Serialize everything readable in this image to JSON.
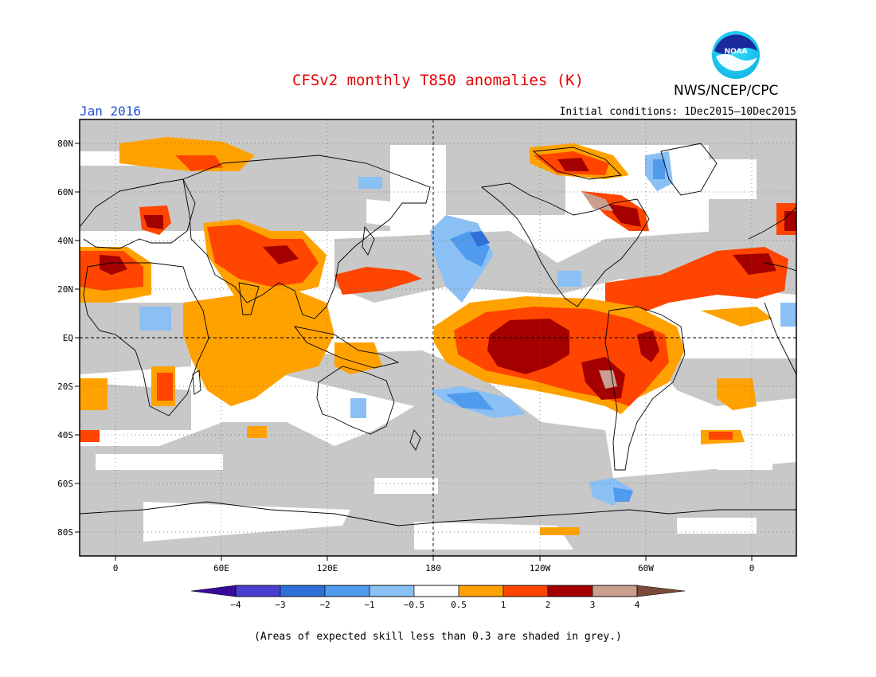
{
  "header": {
    "title": "CFSv2 monthly T850 anomalies (K)",
    "organization": "NWS/NCEP/CPC",
    "logo_text": "NOAA",
    "month": "Jan 2016",
    "initial_conditions": "Initial conditions: 1Dec2015—10Dec2015"
  },
  "map": {
    "projection": "cylindrical equidistant",
    "grid": "dotted",
    "lat_ticks": [
      "80N",
      "60N",
      "40N",
      "20N",
      "EQ",
      "20S",
      "40S",
      "60S",
      "80S"
    ],
    "lon_ticks": [
      "0",
      "60E",
      "120E",
      "180",
      "120W",
      "60W",
      "0"
    ],
    "skill_mask_color": "#c8c8c8"
  },
  "legend": {
    "levels": [
      "−4",
      "−3",
      "−2",
      "−1",
      "−0.5",
      "0.5",
      "1",
      "2",
      "3",
      "4"
    ],
    "colors": [
      "#3a0a9a",
      "#4b3fd2",
      "#2f6fd8",
      "#4f9bee",
      "#8bc0f5",
      "#ffffff",
      "#ffa200",
      "#ff4500",
      "#a50000",
      "#c9a090",
      "#7b4a3a"
    ]
  },
  "footnote": "(Areas of expected skill less than 0.3 are shaded in grey.)"
}
